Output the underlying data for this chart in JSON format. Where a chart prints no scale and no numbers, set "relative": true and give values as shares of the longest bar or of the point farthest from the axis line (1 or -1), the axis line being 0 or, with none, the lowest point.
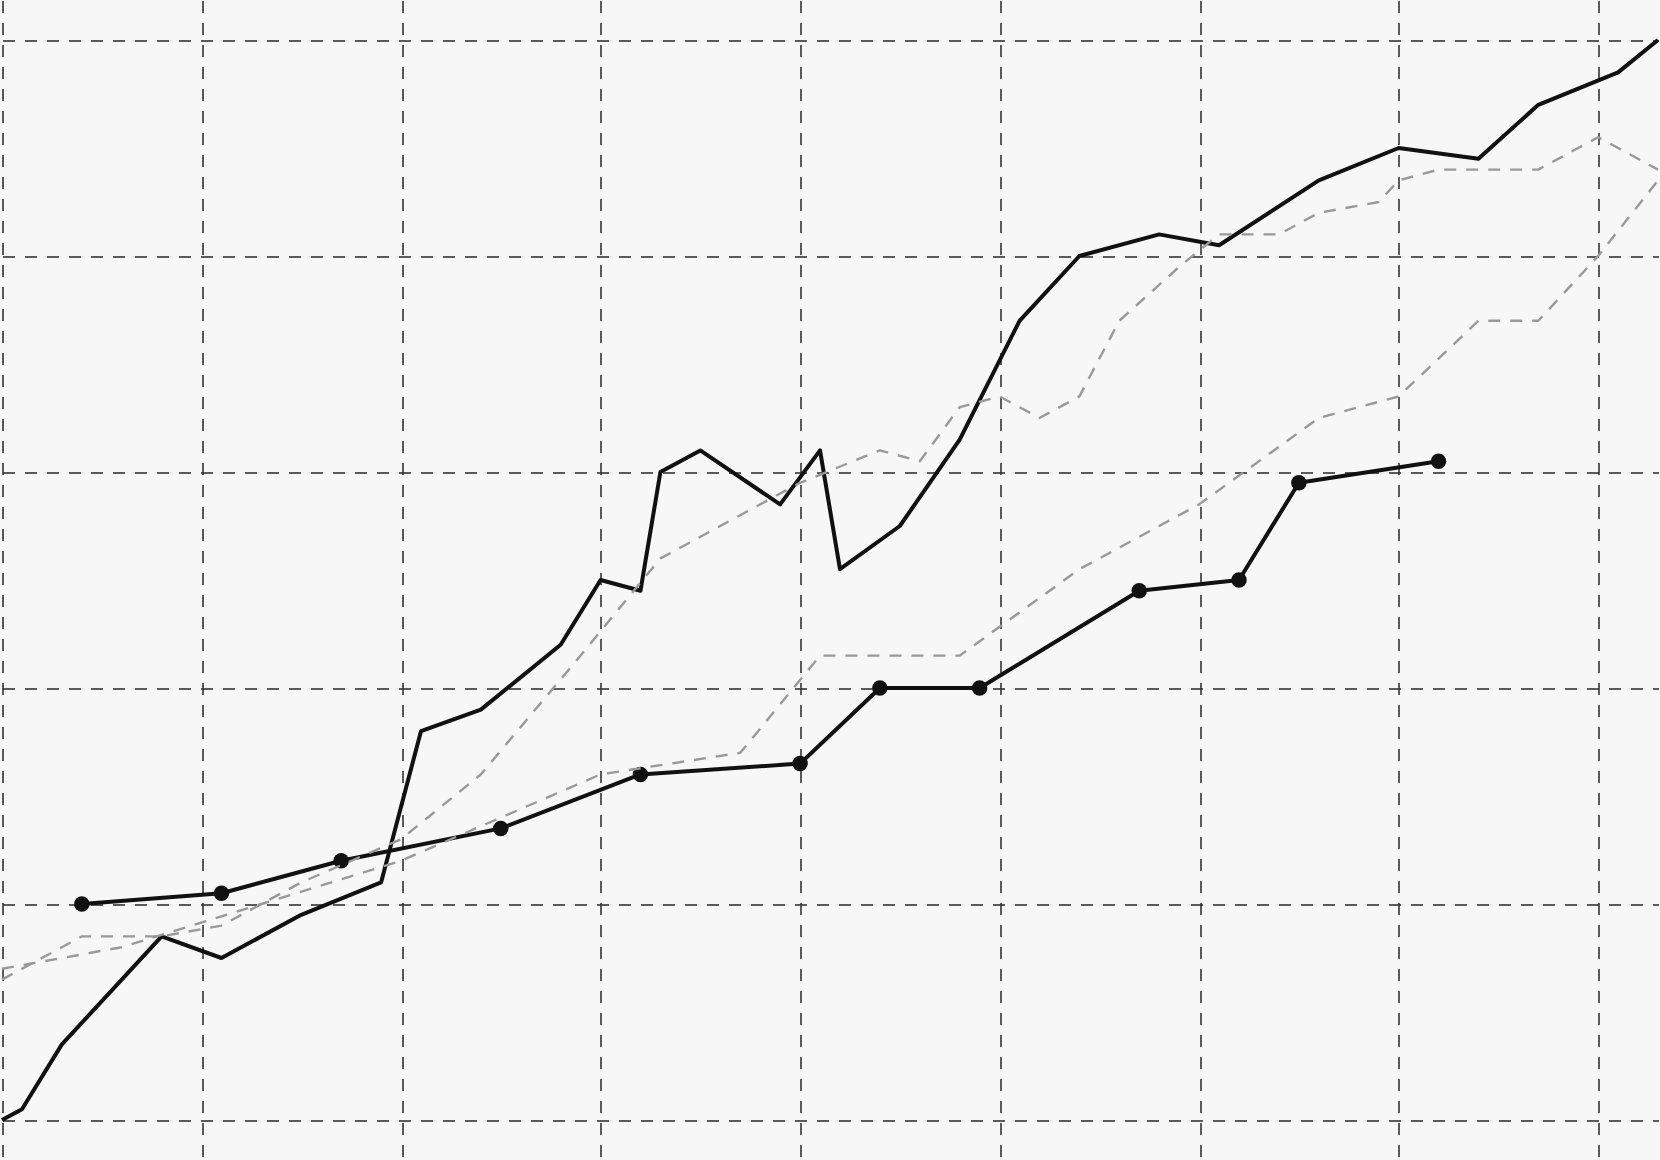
{
  "chart_data": {
    "type": "line",
    "relative": true,
    "grid": true,
    "categories": [
      null,
      null,
      null,
      null,
      null,
      null,
      null,
      null,
      null,
      null,
      null,
      null,
      null,
      null,
      null,
      null,
      null,
      null,
      null,
      null,
      null,
      null,
      null,
      null,
      null,
      null,
      null,
      null,
      null,
      null,
      null,
      null,
      null,
      null,
      null,
      null,
      null,
      null,
      null,
      null,
      null,
      null,
      null,
      null,
      null,
      null,
      null,
      null,
      null,
      null,
      null,
      null,
      null,
      null,
      null,
      null,
      null,
      null,
      null,
      null,
      null,
      null,
      null,
      null,
      null,
      null,
      null,
      null,
      null,
      null,
      null,
      null,
      null,
      null,
      null,
      null,
      null,
      null,
      null,
      null,
      null,
      null,
      null,
      null
    ],
    "series": [
      {
        "color": "#111111",
        "line_style": "solid",
        "marker": "none",
        "values": [
          0,
          0.01,
          null,
          0.07,
          null,
          null,
          0.13,
          null,
          0.17,
          null,
          null,
          0.15,
          null,
          null,
          null,
          0.19,
          null,
          null,
          null,
          0.22,
          null,
          0.36,
          null,
          null,
          0.38,
          null,
          null,
          null,
          0.44,
          null,
          0.5,
          null,
          0.49,
          0.6,
          null,
          0.62,
          null,
          null,
          null,
          0.57,
          null,
          0.62,
          0.51,
          null,
          null,
          0.55,
          null,
          null,
          0.63,
          null,
          null,
          0.74,
          null,
          null,
          0.8,
          null,
          null,
          null,
          0.82,
          null,
          null,
          0.81,
          null,
          null,
          null,
          null,
          0.87,
          null,
          null,
          null,
          0.9,
          null,
          null,
          null,
          0.89,
          null,
          null,
          0.94,
          null,
          null,
          null,
          0.97,
          null,
          1.0
        ]
      },
      {
        "color": "#111111",
        "line_style": "solid",
        "marker": "circle",
        "values": [
          null,
          null,
          null,
          null,
          0.2,
          null,
          null,
          null,
          null,
          null,
          null,
          0.21,
          null,
          null,
          null,
          null,
          null,
          0.24,
          null,
          null,
          null,
          null,
          null,
          null,
          null,
          0.27,
          null,
          null,
          null,
          null,
          null,
          null,
          0.32,
          null,
          null,
          null,
          null,
          null,
          null,
          null,
          0.33,
          null,
          null,
          null,
          0.4,
          null,
          null,
          null,
          null,
          0.4,
          null,
          null,
          null,
          null,
          null,
          null,
          null,
          0.49,
          null,
          null,
          null,
          null,
          0.5,
          null,
          null,
          0.59,
          null,
          null,
          null,
          null,
          null,
          null,
          0.61,
          null,
          null,
          null,
          null,
          null,
          null,
          null,
          null,
          null,
          null,
          null
        ]
      },
      {
        "color": "#999999",
        "line_style": "dashed",
        "marker": "none",
        "values": [
          0.13,
          null,
          null,
          null,
          0.17,
          null,
          null,
          null,
          0.17,
          null,
          null,
          0.18,
          null,
          null,
          null,
          0.22,
          null,
          null,
          null,
          null,
          0.26,
          null,
          null,
          null,
          0.32,
          null,
          null,
          null,
          null,
          0.43,
          null,
          null,
          null,
          0.52,
          null,
          null,
          0.55,
          null,
          null,
          null,
          0.59,
          null,
          null,
          null,
          0.62,
          null,
          0.61,
          null,
          0.66,
          null,
          0.67,
          null,
          0.65,
          null,
          0.67,
          null,
          0.74,
          null,
          null,
          0.79,
          null,
          0.82,
          null,
          null,
          0.82,
          null,
          0.84,
          null,
          null,
          0.85,
          0.87,
          null,
          0.88,
          null,
          null,
          null,
          null,
          0.88,
          null,
          null,
          0.91,
          null,
          null,
          0.88
        ]
      },
      {
        "color": "#999999",
        "line_style": "dashed",
        "marker": "none",
        "values": [
          0.14,
          null,
          null,
          null,
          null,
          null,
          0.16,
          null,
          null,
          null,
          null,
          null,
          null,
          0.2,
          null,
          null,
          null,
          null,
          null,
          null,
          0.24,
          null,
          null,
          null,
          null,
          0.28,
          null,
          null,
          null,
          null,
          0.32,
          null,
          null,
          null,
          null,
          null,
          null,
          0.34,
          null,
          null,
          null,
          0.43,
          null,
          null,
          null,
          null,
          null,
          null,
          0.43,
          null,
          null,
          null,
          null,
          null,
          0.51,
          null,
          null,
          null,
          null,
          null,
          0.57,
          null,
          null,
          null,
          null,
          null,
          0.65,
          null,
          null,
          null,
          0.67,
          null,
          null,
          null,
          0.74,
          null,
          null,
          0.74,
          null,
          null,
          0.8,
          null,
          null,
          0.87
        ]
      }
    ]
  }
}
